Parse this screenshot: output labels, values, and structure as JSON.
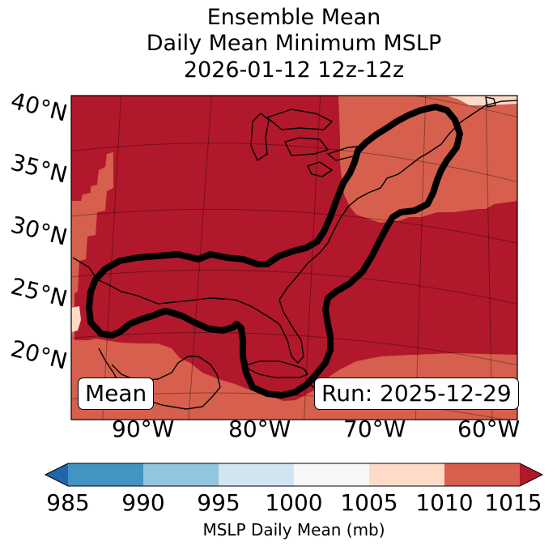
{
  "title": {
    "line1": "Ensemble Mean",
    "line2": "Daily Mean Minimum MSLP",
    "line3": "2026-01-12 12z-12z"
  },
  "lat_labels": [
    "40°N",
    "35°N",
    "30°N",
    "25°N",
    "20°N"
  ],
  "lon_labels": [
    "90°W",
    "80°W",
    "70°W",
    "60°W"
  ],
  "boxes": {
    "left": "Mean",
    "right": "Run: 2025-12-29"
  },
  "colorbar": {
    "ticks": [
      "985",
      "990",
      "995",
      "1000",
      "1005",
      "1010",
      "1015"
    ],
    "colors": [
      "#2166ac",
      "#4393c3",
      "#92c5de",
      "#d1e5f0",
      "#f7f7f7",
      "#fddbc7",
      "#d6604d",
      "#b2182b"
    ],
    "label": "MSLP Daily Mean (mb)"
  },
  "map_colors": {
    "deep": "#b2182b",
    "mid": "#d6604d",
    "light": "#fddbc7"
  }
}
